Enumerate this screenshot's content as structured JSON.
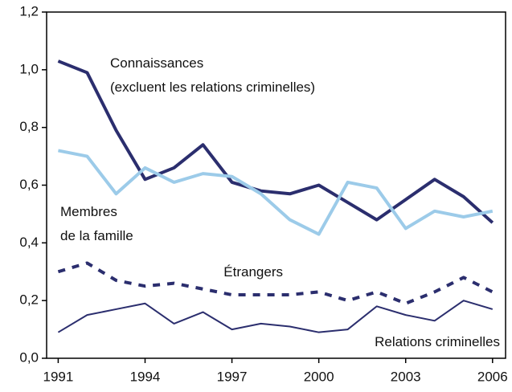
{
  "chart_data": {
    "type": "line",
    "x": [
      1991,
      1992,
      1993,
      1994,
      1995,
      1996,
      1997,
      1998,
      1999,
      2000,
      2001,
      2002,
      2003,
      2004,
      2005,
      2006
    ],
    "series": [
      {
        "name": [
          "Connaissances",
          "(excluent les relations criminelles)"
        ],
        "color": "#2b2e6e",
        "style": "thick",
        "values": [
          1.03,
          0.99,
          0.79,
          0.62,
          0.66,
          0.74,
          0.61,
          0.58,
          0.57,
          0.6,
          0.54,
          0.48,
          0.55,
          0.62,
          0.56,
          0.47
        ]
      },
      {
        "name": [
          "Membres",
          "de la famille"
        ],
        "color": "#9ccbe9",
        "style": "thick",
        "values": [
          0.72,
          0.7,
          0.57,
          0.66,
          0.61,
          0.64,
          0.63,
          0.57,
          0.48,
          0.43,
          0.61,
          0.59,
          0.45,
          0.51,
          0.49,
          0.51
        ]
      },
      {
        "name": [
          "Étrangers"
        ],
        "color": "#2b2e6e",
        "style": "dashed",
        "values": [
          0.3,
          0.33,
          0.27,
          0.25,
          0.26,
          0.24,
          0.22,
          0.22,
          0.22,
          0.23,
          0.2,
          0.23,
          0.19,
          0.23,
          0.28,
          0.23
        ]
      },
      {
        "name": [
          "Relations criminelles"
        ],
        "color": "#2b2e6e",
        "style": "thin",
        "values": [
          0.09,
          0.15,
          0.17,
          0.19,
          0.12,
          0.16,
          0.1,
          0.12,
          0.11,
          0.09,
          0.1,
          0.18,
          0.15,
          0.13,
          0.2,
          0.17
        ]
      }
    ],
    "xlim": [
      1990.6,
      2006.45
    ],
    "xticks": [
      1991,
      1994,
      1997,
      2000,
      2003,
      2006
    ],
    "ylim": [
      0,
      1.2
    ],
    "yticks": [
      {
        "value": 0,
        "label": "0,0"
      },
      {
        "value": 0.2,
        "label": "0,2"
      },
      {
        "value": 0.4,
        "label": "0,4"
      },
      {
        "value": 0.6,
        "label": "0,6"
      },
      {
        "value": 0.8,
        "label": "0,8"
      },
      {
        "value": 1.0,
        "label": "1,0"
      },
      {
        "value": 1.2,
        "label": "1,2"
      }
    ],
    "grid": false
  }
}
